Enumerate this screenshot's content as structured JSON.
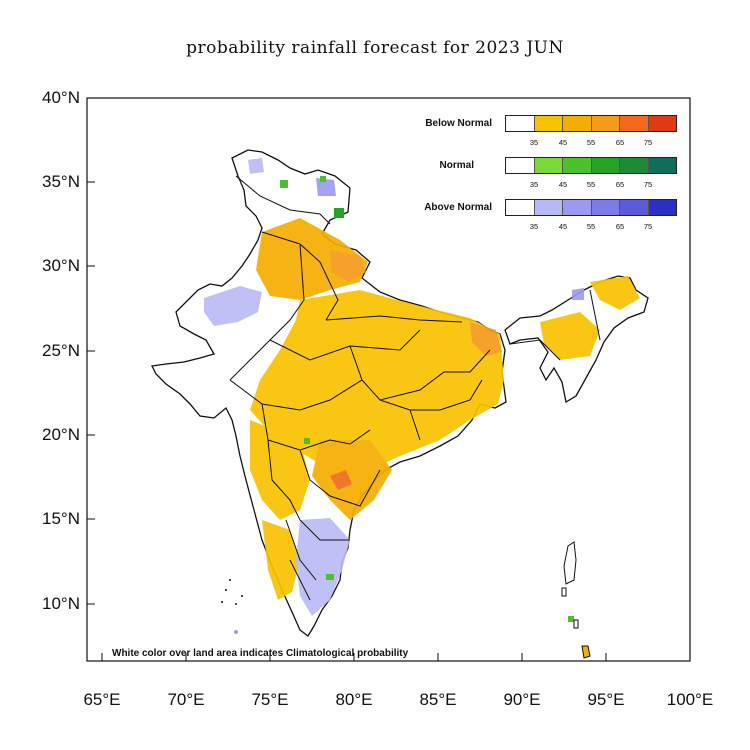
{
  "title": "probability rainfall forecast for 2023 JUN",
  "note": "White color over land area indicates Climatological probability",
  "axes": {
    "lat_ticks": [
      "40°N",
      "35°N",
      "30°N",
      "25°N",
      "20°N",
      "15°N",
      "10°N"
    ],
    "lon_ticks": [
      "65°E",
      "70°E",
      "75°E",
      "80°E",
      "85°E",
      "90°E",
      "95°E",
      "100°E"
    ]
  },
  "legend": {
    "categories": [
      {
        "name": "Below Normal",
        "colors": [
          "#ffffff",
          "#f8c200",
          "#f5ae00",
          "#f59a1a",
          "#f06a1a",
          "#e03a12"
        ]
      },
      {
        "name": "Normal",
        "colors": [
          "#ffffff",
          "#7bd83a",
          "#4cc12c",
          "#26a326",
          "#1c8a38",
          "#0d6e5a"
        ]
      },
      {
        "name": "Above Normal",
        "colors": [
          "#ffffff",
          "#b7b9f5",
          "#9a9af0",
          "#7c7ce6",
          "#5b5cdc",
          "#2a2fc6"
        ]
      }
    ],
    "ticks": [
      "35",
      "45",
      "55",
      "65",
      "75"
    ]
  }
}
